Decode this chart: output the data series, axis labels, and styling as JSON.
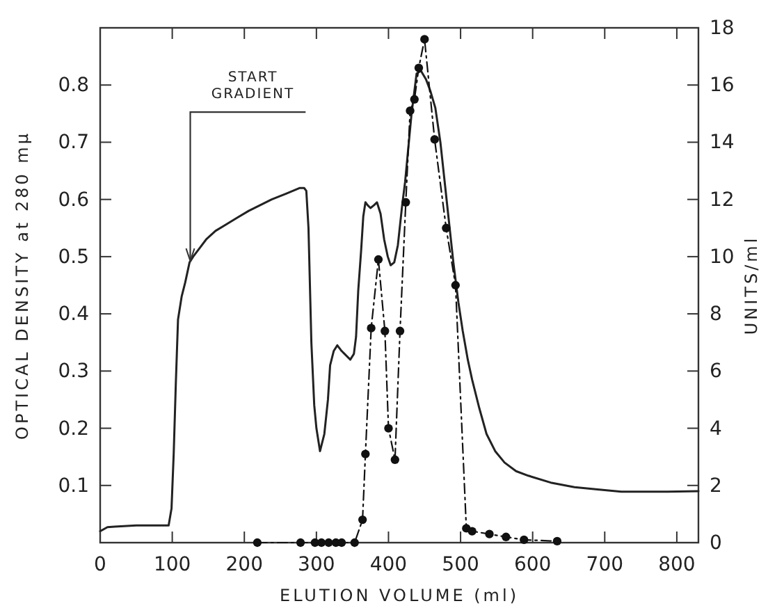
{
  "chart_data": {
    "type": "line",
    "xlabel": "ELUTION VOLUME (ml)",
    "ylabel": "OPTICAL DENSITY at 280 mμ",
    "y2label": "UNITS/ml",
    "xlim": [
      0,
      830
    ],
    "xticks": [
      0,
      100,
      200,
      300,
      400,
      500,
      600,
      700,
      800
    ],
    "ylim": [
      0,
      0.9
    ],
    "yticks": [
      0.1,
      0.2,
      0.3,
      0.4,
      0.5,
      0.6,
      0.7,
      0.8
    ],
    "y2lim": [
      0,
      18
    ],
    "y2ticks": [
      0,
      2,
      4,
      6,
      8,
      10,
      12,
      14,
      16,
      18
    ],
    "grid": false,
    "annotations": [
      {
        "text": "START GRADIENT",
        "x": 125,
        "y": 0.49
      }
    ],
    "series": [
      {
        "color": "#222222",
        "marker": "none",
        "line_style": "solid",
        "x": [
          0,
          10,
          20,
          50,
          80,
          95,
          99,
          102,
          105,
          108,
          113,
          118,
          124,
          129,
          138,
          147,
          160,
          173,
          190,
          206,
          222,
          238,
          258,
          277,
          283,
          286,
          289,
          293,
          297,
          300,
          305,
          311,
          316,
          319,
          324,
          329,
          335,
          339,
          347,
          352,
          355,
          358,
          362,
          365,
          368,
          371,
          375,
          380,
          384,
          389,
          394,
          399,
          403,
          408,
          413,
          419,
          423,
          429,
          432,
          439,
          445,
          452,
          458,
          465,
          472,
          478,
          484,
          490,
          497,
          503,
          510,
          516,
          526,
          536,
          548,
          561,
          577,
          594,
          625,
          658,
          690,
          723,
          760,
          787,
          830
        ],
        "values": [
          0.02,
          0.027,
          0.028,
          0.03,
          0.03,
          0.03,
          0.06,
          0.155,
          0.28,
          0.39,
          0.43,
          0.455,
          0.49,
          0.5,
          0.515,
          0.53,
          0.545,
          0.555,
          0.568,
          0.58,
          0.59,
          0.6,
          0.61,
          0.62,
          0.62,
          0.615,
          0.55,
          0.35,
          0.24,
          0.2,
          0.16,
          0.19,
          0.25,
          0.31,
          0.335,
          0.345,
          0.335,
          0.33,
          0.32,
          0.33,
          0.36,
          0.44,
          0.51,
          0.57,
          0.595,
          0.59,
          0.585,
          0.59,
          0.595,
          0.575,
          0.53,
          0.5,
          0.485,
          0.49,
          0.52,
          0.59,
          0.63,
          0.71,
          0.75,
          0.82,
          0.825,
          0.81,
          0.79,
          0.76,
          0.7,
          0.63,
          0.56,
          0.49,
          0.42,
          0.37,
          0.32,
          0.285,
          0.235,
          0.19,
          0.16,
          0.14,
          0.125,
          0.117,
          0.105,
          0.097,
          0.093,
          0.089,
          0.089,
          0.089,
          0.09
        ]
      },
      {
        "axis": "y2",
        "color": "#111111",
        "marker": "circle",
        "line_style": "dashed",
        "x": [
          218,
          278,
          298,
          307,
          317,
          327,
          335,
          353,
          364,
          368,
          376,
          386,
          395,
          400,
          409,
          416,
          424,
          430,
          436,
          442,
          450,
          464,
          480,
          493,
          508,
          516,
          540,
          563,
          588,
          634
        ],
        "values": [
          0,
          0,
          0,
          0,
          0,
          0,
          0,
          0,
          0.8,
          3.1,
          7.5,
          9.9,
          7.4,
          4.0,
          2.9,
          7.4,
          11.9,
          15.1,
          15.5,
          16.6,
          17.6,
          14.1,
          11.0,
          9.0,
          0.5,
          0.4,
          0.3,
          0.2,
          0.1,
          0.05
        ]
      }
    ]
  }
}
